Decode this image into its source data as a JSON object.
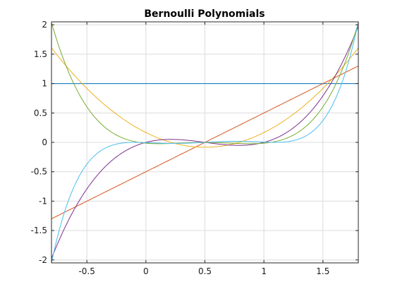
{
  "chart_data": {
    "type": "line",
    "title": "Bernoulli Polynomials",
    "xlabel": "",
    "ylabel": "",
    "xlim": [
      -0.8,
      1.8
    ],
    "ylim": [
      -2.05,
      2.05
    ],
    "xticks": [
      -0.5,
      0,
      0.5,
      1,
      1.5
    ],
    "xtick_labels": [
      "-0.5",
      "0",
      "0.5",
      "1",
      "1.5"
    ],
    "yticks": [
      -2,
      -1.5,
      -1,
      -0.5,
      0,
      0.5,
      1,
      1.5,
      2
    ],
    "ytick_labels": [
      "-2",
      "-1.5",
      "-1",
      "-0.5",
      "0",
      "0.5",
      "1",
      "1.5",
      "2"
    ],
    "grid": true,
    "series": [
      {
        "name": "",
        "color": "#0072bd",
        "degree": 0,
        "x": [
          -0.8,
          1.8
        ],
        "y": [
          1,
          1
        ]
      },
      {
        "name": "",
        "color": "#d95319",
        "degree": 1,
        "x": [
          -0.8,
          -0.6,
          -0.4,
          -0.2,
          0,
          0.2,
          0.4,
          0.6,
          0.8,
          1,
          1.2,
          1.4,
          1.6,
          1.8
        ],
        "y": [
          -1.3,
          -1.1,
          -0.9,
          -0.7,
          -0.5,
          -0.3,
          -0.1,
          0.1,
          0.3,
          0.5,
          0.7,
          0.9,
          1.1,
          1.3
        ]
      },
      {
        "name": "",
        "color": "#edb120",
        "degree": 2,
        "x": [
          -0.8,
          -0.6,
          -0.4,
          -0.2,
          0,
          0.2,
          0.4,
          0.6,
          0.8,
          1,
          1.2,
          1.4,
          1.6,
          1.8
        ],
        "y": [
          1.607,
          1.127,
          0.727,
          0.407,
          0.167,
          0.007,
          -0.073,
          -0.073,
          0.007,
          0.167,
          0.407,
          0.727,
          1.127,
          1.607
        ]
      },
      {
        "name": "",
        "color": "#7e2f8e",
        "degree": 3,
        "x": [
          -0.8,
          -0.6,
          -0.4,
          -0.2,
          0,
          0.2,
          0.4,
          0.6,
          0.8,
          1,
          1.2,
          1.4,
          1.6,
          1.8
        ],
        "y": [
          -1.976,
          -1.104,
          -0.504,
          -0.144,
          0,
          0.048,
          0.024,
          -0.024,
          -0.048,
          0,
          0.144,
          0.504,
          1.104,
          1.976
        ]
      },
      {
        "name": "",
        "color": "#77ac30",
        "degree": 4,
        "x": [
          -0.8,
          -0.6,
          -0.4,
          -0.2,
          0,
          0.2,
          0.4,
          0.6,
          0.8,
          1,
          1.2,
          1.4,
          1.6,
          1.8
        ],
        "y": [
          2.037,
          0.947,
          0.349,
          0.077,
          -0.033,
          -0.046,
          -0.005,
          -0.005,
          -0.046,
          -0.033,
          0.077,
          0.349,
          0.947,
          2.037
        ]
      },
      {
        "name": "",
        "color": "#4dbeee",
        "degree": 5,
        "x": [
          -0.8,
          -0.6,
          -0.4,
          -0.2,
          0,
          0.2,
          0.4,
          0.6,
          0.8,
          1,
          1.2,
          1.4,
          1.6,
          1.8
        ],
        "y": [
          -2.05,
          -0.753,
          -0.185,
          -0.012,
          0,
          -0.018,
          -0.012,
          0.012,
          0.018,
          0,
          0.012,
          0.185,
          0.753,
          2.05
        ]
      }
    ]
  }
}
